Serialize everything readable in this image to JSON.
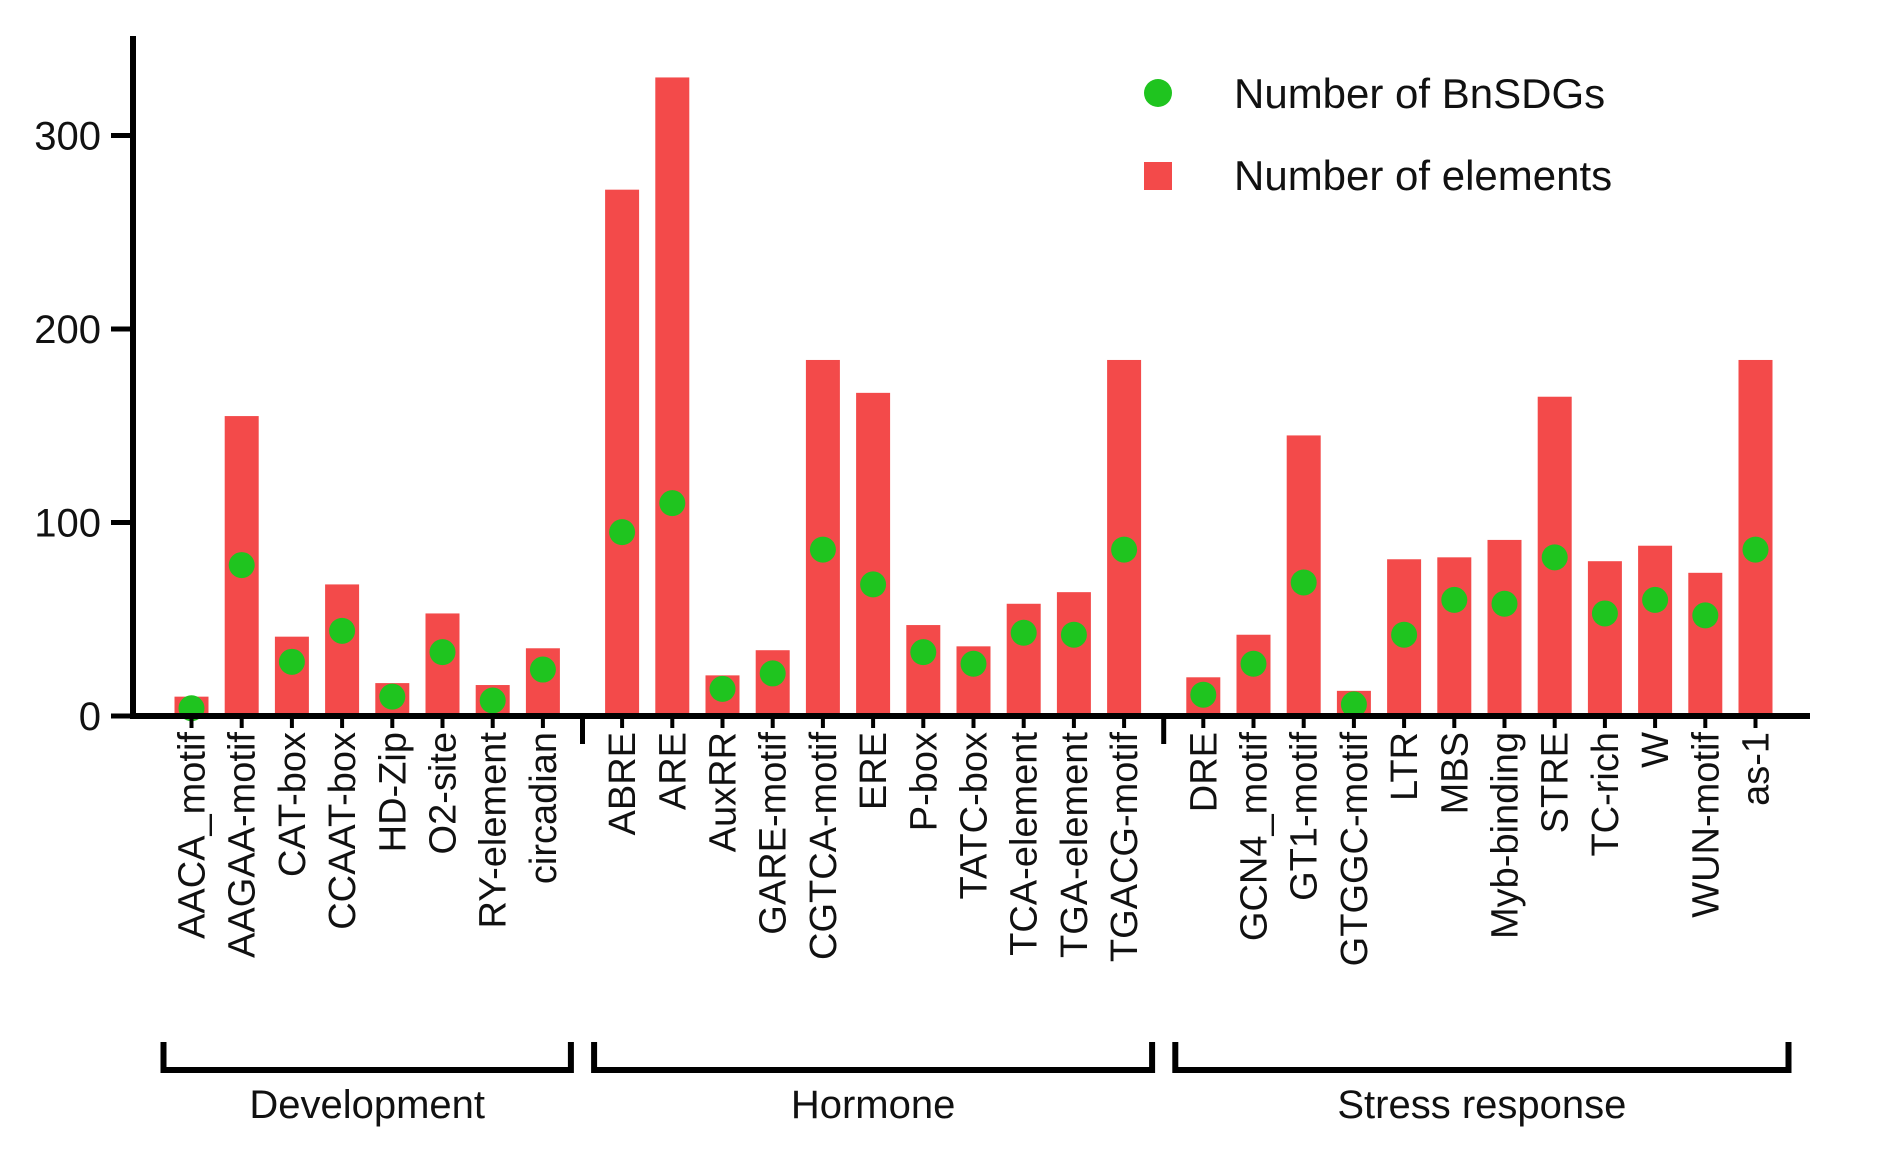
{
  "chart_data": {
    "type": "bar",
    "title": "",
    "xlabel": "",
    "ylabel": "",
    "ylim": [
      0,
      350
    ],
    "yticks": [
      0,
      100,
      200,
      300
    ],
    "colors": {
      "bars": "#f34a4a",
      "points": "#1fc41f",
      "axis": "#000000"
    },
    "legend": {
      "position": "top-right",
      "items": [
        {
          "label": "Number of BnSDGs",
          "marker": "circle",
          "color": "#1fc41f"
        },
        {
          "label": "Number of elements",
          "marker": "square",
          "color": "#f34a4a"
        }
      ]
    },
    "groups": [
      {
        "name": "Development",
        "categories": [
          "AACA_motif",
          "AAGAA-motif",
          "CAT-box",
          "CCAAT-box",
          "HD-Zip",
          "O2-site",
          "RY-element",
          "circadian"
        ],
        "elements": [
          10,
          155,
          41,
          68,
          17,
          53,
          16,
          35
        ],
        "bnsdgs": [
          4,
          78,
          28,
          44,
          10,
          33,
          8,
          24
        ]
      },
      {
        "name": "Hormone",
        "categories": [
          "ABRE",
          "ARE",
          "AuxRR",
          "GARE-motif",
          "CGTCA-motif",
          "ERE",
          "P-box",
          "TATC-box",
          "TCA-element",
          "TGA-element",
          "TGACG-motif"
        ],
        "elements": [
          272,
          330,
          21,
          34,
          184,
          167,
          47,
          36,
          58,
          64,
          184
        ],
        "bnsdgs": [
          95,
          110,
          14,
          22,
          86,
          68,
          33,
          27,
          43,
          42,
          86
        ]
      },
      {
        "name": "Stress response",
        "categories": [
          "DRE",
          "GCN4_motif",
          "GT1-motif",
          "GTGGC-motif",
          "LTR",
          "MBS",
          "Myb-binding",
          "STRE",
          "TC-rich",
          "W",
          "WUN-motif",
          "as-1"
        ],
        "elements": [
          20,
          42,
          145,
          13,
          81,
          82,
          91,
          165,
          80,
          88,
          74,
          184
        ],
        "bnsdgs": [
          11,
          27,
          69,
          6,
          42,
          60,
          58,
          82,
          53,
          60,
          52,
          86
        ]
      }
    ]
  }
}
